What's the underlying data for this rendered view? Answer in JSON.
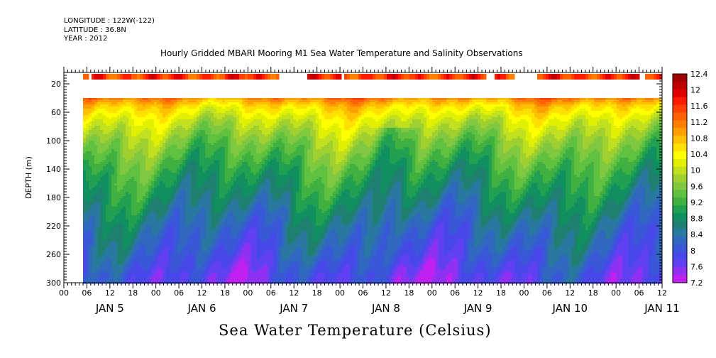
{
  "header": {
    "longitude": "LONGITUDE : 122W(-122)",
    "latitude": "LATITUDE : 36.8N",
    "year": "YEAR : 2012"
  },
  "chart_data": {
    "type": "heatmap",
    "title": "Hourly Gridded MBARI Mooring M1 Sea Water Temperature and Salinity Observations",
    "xlabel": "Sea Water Temperature (Celsius)",
    "ylabel": "DEPTH (m)",
    "ylim": [
      300,
      4
    ],
    "y_ticks": [
      20,
      60,
      100,
      140,
      180,
      220,
      260,
      300
    ],
    "x_hour_ticks": [
      "00",
      "06",
      "12",
      "18",
      "00",
      "06",
      "12",
      "18",
      "00",
      "06",
      "12",
      "18",
      "00",
      "06",
      "12",
      "18",
      "00",
      "06",
      "12",
      "18",
      "00",
      "06",
      "12",
      "18",
      "00",
      "06",
      "12"
    ],
    "x_day_labels": [
      "JAN  5",
      "JAN  6",
      "JAN  7",
      "JAN  8",
      "JAN  9",
      "JAN 10",
      "JAN 11"
    ],
    "x_range_hours": [
      0,
      156
    ],
    "data_start_hour": 5,
    "colorbar": {
      "labels": [
        "12.4",
        "12",
        "11.6",
        "11.2",
        "10.8",
        "10.4",
        "10",
        "9.6",
        "9.2",
        "8.8",
        "8.4",
        "8",
        "7.6",
        "7.2"
      ],
      "levels": [
        12.4,
        12.2,
        12.0,
        11.8,
        11.6,
        11.4,
        11.2,
        11.0,
        10.8,
        10.6,
        10.4,
        10.2,
        10.0,
        9.8,
        9.6,
        9.4,
        9.2,
        9.0,
        8.8,
        8.6,
        8.4,
        8.2,
        8.0,
        7.8,
        7.6,
        7.4,
        7.2
      ],
      "colors": [
        "#a00000",
        "#c00000",
        "#e00000",
        "#ff1a00",
        "#ff4000",
        "#ff6000",
        "#ff8000",
        "#ffa000",
        "#ffc000",
        "#ffe000",
        "#ffff00",
        "#e0f000",
        "#c0e020",
        "#a0d030",
        "#80c840",
        "#60c040",
        "#40b040",
        "#20a050",
        "#109060",
        "#208070",
        "#2878a0",
        "#3068c0",
        "#3858d8",
        "#4848e8",
        "#6040f0",
        "#9030f0",
        "#c020f0"
      ]
    },
    "depth_profile_temperature": [
      {
        "depth": 10,
        "value": 11.6
      },
      {
        "depth": 40,
        "value": 11.0
      },
      {
        "depth": 50,
        "value": 10.5
      },
      {
        "depth": 70,
        "value": 10.0
      },
      {
        "depth": 100,
        "value": 9.5
      },
      {
        "depth": 140,
        "value": 9.0
      },
      {
        "depth": 180,
        "value": 8.6
      },
      {
        "depth": 220,
        "value": 8.2
      },
      {
        "depth": 260,
        "value": 7.9
      },
      {
        "depth": 290,
        "value": 7.6
      }
    ],
    "surface_gaps_hours": [
      [
        6,
        7
      ],
      [
        56,
        63
      ],
      [
        72,
        73
      ],
      [
        110,
        112
      ],
      [
        117,
        123
      ],
      [
        150,
        151
      ]
    ]
  }
}
